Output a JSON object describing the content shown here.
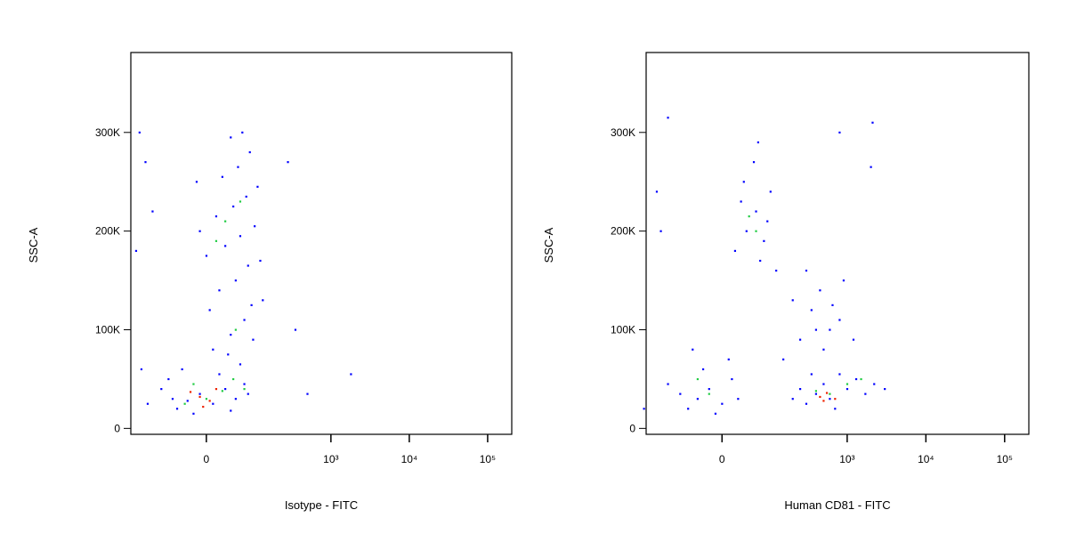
{
  "chart_data": [
    {
      "type": "scatter",
      "xlabel": "Isotype - FITC",
      "ylabel": "SSC-A",
      "xscale": "biexponential",
      "xlim": [
        -234,
        203000
      ],
      "ylim": [
        -6000,
        381000
      ],
      "xticks": [
        0,
        {
          "value": 1000,
          "label": "10³"
        },
        {
          "value": 10000,
          "label": "10⁴"
        },
        {
          "value": 100000,
          "label": "10⁵"
        }
      ],
      "yticks": [
        0,
        {
          "value": 100000,
          "label": "100K"
        },
        {
          "value": 200000,
          "label": "200K"
        },
        {
          "value": 300000,
          "label": "300K"
        }
      ],
      "series": [
        {
          "color": "#0000ff",
          "x": [
            -50,
            -30,
            -10,
            10,
            30,
            50,
            70,
            -70,
            -40,
            20,
            60,
            -20,
            40,
            80,
            -90,
            -60,
            10,
            40,
            70,
            90,
            20,
            50,
            80,
            0,
            30,
            60,
            100,
            15,
            45,
            75,
            110,
            25,
            55,
            85,
            40,
            65,
            5,
            95,
            120,
            -10,
            35,
            130,
            -15,
            -180,
            -150,
            -120,
            -200,
            350,
            1800,
            500,
            280,
            -170,
            -140
          ],
          "y": [
            20000,
            28000,
            35000,
            25000,
            40000,
            30000,
            45000,
            50000,
            60000,
            55000,
            65000,
            15000,
            18000,
            35000,
            40000,
            30000,
            80000,
            95000,
            110000,
            125000,
            140000,
            150000,
            165000,
            175000,
            185000,
            195000,
            205000,
            215000,
            225000,
            235000,
            245000,
            255000,
            265000,
            280000,
            295000,
            300000,
            120000,
            90000,
            170000,
            200000,
            75000,
            130000,
            250000,
            300000,
            270000,
            220000,
            180000,
            100000,
            55000,
            35000,
            270000,
            60000,
            25000
          ]
        },
        {
          "color": "#22cc44",
          "x": [
            0,
            25,
            -20,
            45,
            30,
            60,
            15,
            50,
            -35,
            70
          ],
          "y": [
            30000,
            38000,
            45000,
            50000,
            210000,
            230000,
            190000,
            100000,
            25000,
            40000
          ]
        },
        {
          "color": "#ee2200",
          "x": [
            -10,
            5,
            15,
            -25,
            -5
          ],
          "y": [
            32000,
            28000,
            40000,
            37000,
            22000
          ]
        }
      ]
    },
    {
      "type": "scatter",
      "xlabel": "Human CD81 - FITC",
      "ylabel": "SSC-A",
      "xscale": "biexponential",
      "xlim": [
        -234,
        203000
      ],
      "ylim": [
        -6000,
        381000
      ],
      "xticks": [
        0,
        {
          "value": 1000,
          "label": "10³"
        },
        {
          "value": 10000,
          "label": "10⁴"
        },
        {
          "value": 100000,
          "label": "10⁵"
        }
      ],
      "yticks": [
        0,
        {
          "value": 100000,
          "label": "100K"
        },
        {
          "value": 200000,
          "label": "200K"
        },
        {
          "value": 300000,
          "label": "300K"
        }
      ],
      "series": [
        {
          "color": "#0000ff",
          "x": [
            -60,
            -40,
            -20,
            0,
            15,
            -30,
            -80,
            10,
            -50,
            -10,
            25,
            -120,
            20,
            40,
            60,
            80,
            100,
            35,
            70,
            55,
            90,
            120,
            30,
            65,
            -150,
            -170,
            200,
            250,
            300,
            400,
            500,
            600,
            800,
            1000,
            1300,
            1700,
            2200,
            3000,
            350,
            700,
            250,
            350,
            450,
            600,
            300,
            500,
            800,
            200,
            900,
            1200,
            400,
            150,
            650,
            -120,
            800,
            2100,
            2000,
            -250
          ],
          "y": [
            20000,
            30000,
            40000,
            25000,
            50000,
            60000,
            35000,
            70000,
            80000,
            15000,
            30000,
            45000,
            180000,
            200000,
            220000,
            190000,
            240000,
            250000,
            170000,
            270000,
            210000,
            160000,
            230000,
            290000,
            200000,
            240000,
            30000,
            40000,
            25000,
            35000,
            45000,
            30000,
            55000,
            40000,
            50000,
            35000,
            45000,
            40000,
            55000,
            20000,
            90000,
            120000,
            140000,
            100000,
            160000,
            80000,
            110000,
            130000,
            150000,
            90000,
            100000,
            70000,
            125000,
            315000,
            300000,
            310000,
            265000,
            20000
          ]
        },
        {
          "color": "#22cc44",
          "x": [
            -20,
            45,
            60,
            400,
            600,
            1000,
            1500,
            -40
          ],
          "y": [
            35000,
            215000,
            200000,
            38000,
            35000,
            45000,
            50000,
            50000
          ]
        },
        {
          "color": "#ee2200",
          "x": [
            450,
            550,
            700,
            500
          ],
          "y": [
            32000,
            36000,
            30000,
            28000
          ]
        }
      ]
    }
  ]
}
